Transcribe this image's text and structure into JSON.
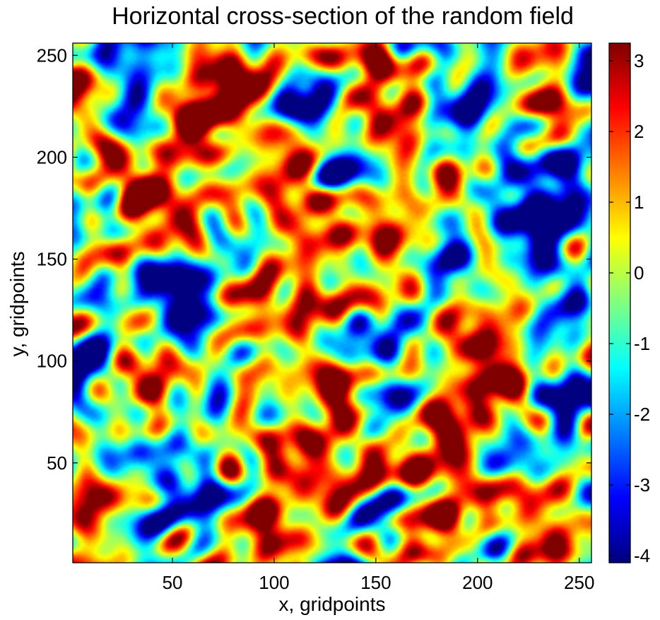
{
  "chart_data": {
    "type": "heatmap",
    "title": "Horizontal cross-section of the random field",
    "xlabel": "x, gridpoints",
    "ylabel": "y, gridpoints",
    "xlim": [
      1,
      256
    ],
    "ylim": [
      1,
      256
    ],
    "x_ticks": [
      50,
      100,
      150,
      200,
      250
    ],
    "y_ticks": [
      50,
      100,
      150,
      200,
      250
    ],
    "colorbar": {
      "colormap": "jet",
      "clim": [
        -4.1,
        3.25
      ],
      "ticks": [
        -4,
        -3,
        -2,
        -1,
        0,
        1,
        2,
        3
      ]
    },
    "grid": false,
    "features": [
      {
        "x": 85,
        "y": 245,
        "value": 3.0
      },
      {
        "x": 45,
        "y": 225,
        "value": 2.6
      },
      {
        "x": 40,
        "y": 170,
        "value": 2.7
      },
      {
        "x": 95,
        "y": 183,
        "value": 2.2
      },
      {
        "x": 150,
        "y": 165,
        "value": 2.4
      },
      {
        "x": 118,
        "y": 140,
        "value": 1.8
      },
      {
        "x": 125,
        "y": 122,
        "value": 1.5
      },
      {
        "x": 150,
        "y": 232,
        "value": 1.8
      },
      {
        "x": 28,
        "y": 225,
        "value": 1.4
      },
      {
        "x": 22,
        "y": 190,
        "value": 1.5
      },
      {
        "x": 30,
        "y": 100,
        "value": 1.9
      },
      {
        "x": 30,
        "y": 15,
        "value": 2.3
      },
      {
        "x": 100,
        "y": 70,
        "value": 1.5
      },
      {
        "x": 130,
        "y": 40,
        "value": 2.0
      },
      {
        "x": 150,
        "y": 70,
        "value": 2.0
      },
      {
        "x": 200,
        "y": 40,
        "value": 2.3
      },
      {
        "x": 225,
        "y": 90,
        "value": 2.1
      },
      {
        "x": 240,
        "y": 15,
        "value": 2.0
      },
      {
        "x": 205,
        "y": 130,
        "value": 1.6
      },
      {
        "x": 180,
        "y": 28,
        "value": 1.4
      },
      {
        "x": 45,
        "y": 145,
        "value": -3.9
      },
      {
        "x": 70,
        "y": 128,
        "value": -2.2
      },
      {
        "x": 215,
        "y": 175,
        "value": -3.0
      },
      {
        "x": 185,
        "y": 150,
        "value": -2.2
      },
      {
        "x": 235,
        "y": 150,
        "value": -2.6
      },
      {
        "x": 190,
        "y": 210,
        "value": -2.1
      },
      {
        "x": 20,
        "y": 250,
        "value": -2.0
      },
      {
        "x": 10,
        "y": 110,
        "value": -2.1
      },
      {
        "x": 15,
        "y": 45,
        "value": -2.0
      },
      {
        "x": 245,
        "y": 210,
        "value": -1.8
      },
      {
        "x": 60,
        "y": 25,
        "value": -1.5
      },
      {
        "x": 250,
        "y": 250,
        "value": -1.6
      }
    ]
  }
}
